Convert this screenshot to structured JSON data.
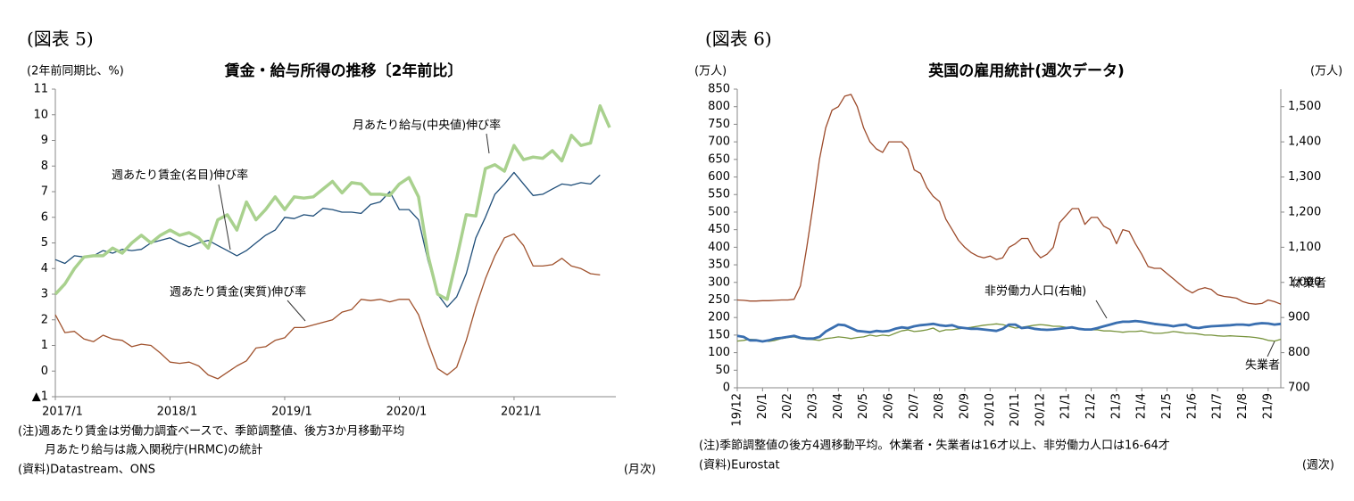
{
  "chart_data": [
    {
      "type": "line",
      "figure_label": "(図表 5)",
      "title": "賃金・給与所得の推移〔2年前比〕",
      "ylabel": "(2年前同期比、%)",
      "categories": [
        "2017/1",
        null,
        null,
        null,
        null,
        null,
        null,
        null,
        null,
        null,
        null,
        null,
        "2018/1",
        null,
        null,
        null,
        null,
        null,
        null,
        null,
        null,
        null,
        null,
        null,
        "2019/1",
        null,
        null,
        null,
        null,
        null,
        null,
        null,
        null,
        null,
        null,
        null,
        "2020/1",
        null,
        null,
        null,
        null,
        null,
        null,
        null,
        null,
        null,
        null,
        null,
        "2021/1",
        null,
        null,
        null,
        null,
        null,
        null,
        null,
        null,
        null,
        null
      ],
      "ylim": [
        -1,
        11
      ],
      "yticks": [
        {
          "value": -1,
          "label": "▲1"
        },
        0,
        1,
        2,
        3,
        4,
        5,
        6,
        7,
        8,
        9,
        10,
        11
      ],
      "series": [
        {
          "name": "週あたり賃金(名目)伸び率",
          "color": "#1f4e79",
          "width": 1.3,
          "values": [
            4.35,
            4.2,
            4.5,
            4.45,
            4.5,
            4.7,
            4.6,
            4.75,
            4.7,
            4.75,
            5.0,
            5.1,
            5.2,
            5.0,
            4.85,
            5.0,
            5.1,
            4.9,
            4.7,
            4.5,
            4.7,
            5.0,
            5.3,
            5.5,
            6.0,
            5.95,
            6.1,
            6.05,
            6.35,
            6.3,
            6.2,
            6.2,
            6.15,
            6.5,
            6.6,
            7.0,
            6.3,
            6.3,
            5.9,
            4.3,
            3.0,
            2.5,
            2.9,
            3.8,
            5.2,
            6.0,
            6.9,
            7.3,
            7.75,
            7.3,
            6.85,
            6.9,
            7.1,
            7.3,
            7.25,
            7.35,
            7.3,
            7.65,
            null
          ]
        },
        {
          "name": "月あたり給与(中央値)伸び率",
          "color": "#a9d18e",
          "width": 3.5,
          "values": [
            3.0,
            3.4,
            4.0,
            4.45,
            4.5,
            4.5,
            4.8,
            4.6,
            5.0,
            5.3,
            5.0,
            5.3,
            5.5,
            5.3,
            5.4,
            5.2,
            4.8,
            5.9,
            6.1,
            5.5,
            6.6,
            5.9,
            6.3,
            6.8,
            6.3,
            6.8,
            6.75,
            6.8,
            7.1,
            7.4,
            6.95,
            7.35,
            7.3,
            6.9,
            6.9,
            6.85,
            7.3,
            7.55,
            6.8,
            4.5,
            3.0,
            2.8,
            4.4,
            6.1,
            6.05,
            7.9,
            8.05,
            7.8,
            8.8,
            8.25,
            8.35,
            8.3,
            8.6,
            8.2,
            9.2,
            8.8,
            8.9,
            10.35,
            9.5
          ]
        },
        {
          "name": "週あたり賃金(実質)伸び率",
          "color": "#a0522d",
          "width": 1.3,
          "values": [
            2.2,
            1.5,
            1.55,
            1.25,
            1.15,
            1.4,
            1.25,
            1.2,
            0.95,
            1.05,
            1.0,
            0.7,
            0.35,
            0.3,
            0.35,
            0.2,
            -0.15,
            -0.3,
            -0.05,
            0.2,
            0.4,
            0.9,
            0.95,
            1.2,
            1.3,
            1.7,
            1.7,
            1.8,
            1.9,
            2.0,
            2.3,
            2.4,
            2.8,
            2.75,
            2.8,
            2.7,
            2.8,
            2.8,
            2.2,
            1.1,
            0.1,
            -0.15,
            0.15,
            1.2,
            2.5,
            3.6,
            4.5,
            5.2,
            5.35,
            4.9,
            4.1,
            4.1,
            4.15,
            4.4,
            4.1,
            4.0,
            3.8,
            3.75,
            null
          ]
        }
      ],
      "notes": [
        "(注)週あたり賃金は労働力調査ベースで、季節調整値、後方3か月移動平均",
        "月あたり給与は歳入関税庁(HRMC)の統計"
      ],
      "source": "(資料)Datastream、ONS",
      "x_unit": "(月次)"
    },
    {
      "type": "line",
      "figure_label": "(図表 6)",
      "title": "英国の雇用統計(週次データ)",
      "ylabel": "(万人)",
      "y2label": "(万人)",
      "categories": [
        "19/12",
        null,
        null,
        null,
        "20/1",
        null,
        null,
        null,
        "20/2",
        null,
        null,
        null,
        "20/3",
        null,
        null,
        null,
        "20/4",
        null,
        null,
        null,
        "20/5",
        null,
        null,
        null,
        "20/6",
        null,
        null,
        null,
        "20/7",
        null,
        null,
        null,
        "20/8",
        null,
        null,
        null,
        "20/9",
        null,
        null,
        null,
        "20/10",
        null,
        null,
        null,
        "20/11",
        null,
        null,
        null,
        "20/12",
        null,
        null,
        null,
        "21/1",
        null,
        null,
        null,
        "21/2",
        null,
        null,
        null,
        "21/3",
        null,
        null,
        null,
        "21/4",
        null,
        null,
        null,
        "21/5",
        null,
        null,
        null,
        "21/6",
        null,
        null,
        null,
        "21/7",
        null,
        null,
        null,
        "21/8",
        null,
        null,
        null,
        "21/9",
        null,
        null
      ],
      "ylim": [
        0,
        850
      ],
      "yticks": [
        0,
        50,
        100,
        150,
        200,
        250,
        300,
        350,
        400,
        450,
        500,
        550,
        600,
        650,
        700,
        750,
        800,
        850
      ],
      "y2lim": [
        700,
        1550
      ],
      "y2ticks": [
        700,
        800,
        900,
        {
          "value": 1000,
          "label": "1,000"
        },
        {
          "value": 1100,
          "label": "1,100"
        },
        {
          "value": 1200,
          "label": "1,200"
        },
        {
          "value": 1300,
          "label": "1,300"
        },
        {
          "value": 1400,
          "label": "1,400"
        },
        {
          "value": 1500,
          "label": "1,500"
        }
      ],
      "series": [
        {
          "name": "休業者",
          "color": "#9c4a2a",
          "width": 1.3,
          "values": [
            250,
            249,
            247,
            247,
            248,
            248,
            249,
            250,
            250,
            252,
            290,
            400,
            520,
            650,
            740,
            790,
            800,
            830,
            835,
            800,
            740,
            700,
            680,
            670,
            700,
            700,
            700,
            680,
            620,
            610,
            570,
            545,
            530,
            480,
            450,
            420,
            400,
            385,
            375,
            370,
            375,
            365,
            370,
            400,
            410,
            425,
            425,
            390,
            370,
            380,
            400,
            470,
            490,
            510,
            510,
            465,
            485,
            485,
            460,
            450,
            410,
            450,
            445,
            410,
            380,
            345,
            340,
            340,
            325,
            310,
            295,
            280,
            270,
            280,
            285,
            280,
            265,
            260,
            258,
            255,
            245,
            240,
            238,
            240,
            250,
            245,
            238
          ]
        },
        {
          "name": "失業者",
          "color": "#77933c",
          "width": 1.3,
          "values": [
            133,
            135,
            138,
            137,
            133,
            132,
            135,
            140,
            143,
            145,
            140,
            138,
            137,
            135,
            140,
            142,
            145,
            143,
            140,
            143,
            145,
            150,
            147,
            150,
            148,
            155,
            162,
            165,
            160,
            162,
            165,
            170,
            160,
            165,
            165,
            168,
            170,
            172,
            175,
            178,
            180,
            182,
            180,
            175,
            170,
            172,
            175,
            178,
            180,
            178,
            175,
            175,
            172,
            170,
            168,
            165,
            165,
            165,
            162,
            162,
            160,
            158,
            160,
            160,
            162,
            158,
            155,
            155,
            157,
            160,
            158,
            155,
            155,
            153,
            150,
            150,
            148,
            147,
            148,
            147,
            146,
            145,
            143,
            140,
            135,
            133,
            138
          ]
        },
        {
          "name": "非労働力人口(右軸)",
          "color": "#3a6fb0",
          "width": 2.8,
          "axis": "y2",
          "values": [
            848,
            845,
            835,
            835,
            832,
            835,
            840,
            842,
            845,
            848,
            842,
            840,
            840,
            845,
            860,
            870,
            880,
            878,
            870,
            862,
            860,
            858,
            862,
            860,
            862,
            868,
            872,
            870,
            875,
            878,
            880,
            882,
            878,
            876,
            878,
            872,
            870,
            868,
            868,
            866,
            864,
            862,
            868,
            880,
            880,
            870,
            872,
            868,
            866,
            865,
            866,
            868,
            870,
            872,
            868,
            866,
            866,
            870,
            875,
            880,
            885,
            888,
            888,
            890,
            888,
            885,
            882,
            880,
            878,
            875,
            878,
            880,
            872,
            870,
            873,
            875,
            876,
            877,
            878,
            880,
            880,
            878,
            882,
            884,
            883,
            880,
            882
          ]
        }
      ],
      "notes": [
        "(注)季節調整値の後方4週移動平均。休業者・失業者は16才以上、非労働力人口は16-64才"
      ],
      "source": "(資料)Eurostat",
      "x_unit": "(週次)"
    }
  ]
}
